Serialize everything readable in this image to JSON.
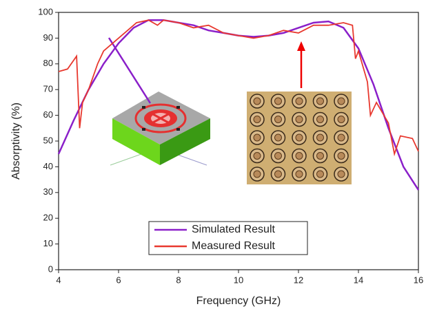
{
  "chart_data": {
    "type": "line",
    "x_label": "Frequency (GHz)",
    "y_label": "Absorptivity (%)",
    "xlim": [
      4,
      16
    ],
    "xticks": [
      4,
      6,
      8,
      10,
      12,
      14,
      16
    ],
    "ylim": [
      0,
      100
    ],
    "yticks": [
      0,
      10,
      20,
      30,
      40,
      50,
      60,
      70,
      80,
      90,
      100
    ],
    "legend": "lower center",
    "series": [
      {
        "name": "Simulated Result",
        "color": "#8a1fc9",
        "x": [
          4,
          4.5,
          5,
          5.5,
          6,
          6.5,
          7,
          7.5,
          8,
          8.5,
          9,
          9.5,
          10,
          10.5,
          11,
          11.5,
          12,
          12.5,
          13,
          13.5,
          14,
          14.5,
          15,
          15.5,
          16
        ],
        "values": [
          45,
          58,
          70,
          80,
          88,
          94,
          97,
          97,
          96,
          95,
          93,
          92,
          91,
          90.5,
          91,
          92,
          94,
          96,
          96.5,
          94,
          86,
          72,
          55,
          40,
          31
        ]
      },
      {
        "name": "Measured Result",
        "color": "#e8382e",
        "x": [
          4,
          4.3,
          4.6,
          4.7,
          4.8,
          5,
          5.3,
          5.5,
          5.8,
          6,
          6.3,
          6.6,
          7,
          7.3,
          7.5,
          8,
          8.5,
          9,
          9.5,
          10,
          10.5,
          11,
          11.5,
          12,
          12.5,
          13,
          13.5,
          13.8,
          13.9,
          14,
          14.3,
          14.4,
          14.6,
          15,
          15.2,
          15.4,
          15.8,
          16
        ],
        "values": [
          77,
          78,
          83,
          55,
          65,
          70,
          80,
          85,
          88,
          90,
          93,
          96,
          97,
          95,
          97,
          96,
          94,
          95,
          92,
          91,
          90,
          91,
          93,
          92,
          95,
          95,
          96,
          95,
          82,
          85,
          73,
          60,
          65,
          57,
          45,
          52,
          51,
          46
        ]
      }
    ]
  }
}
